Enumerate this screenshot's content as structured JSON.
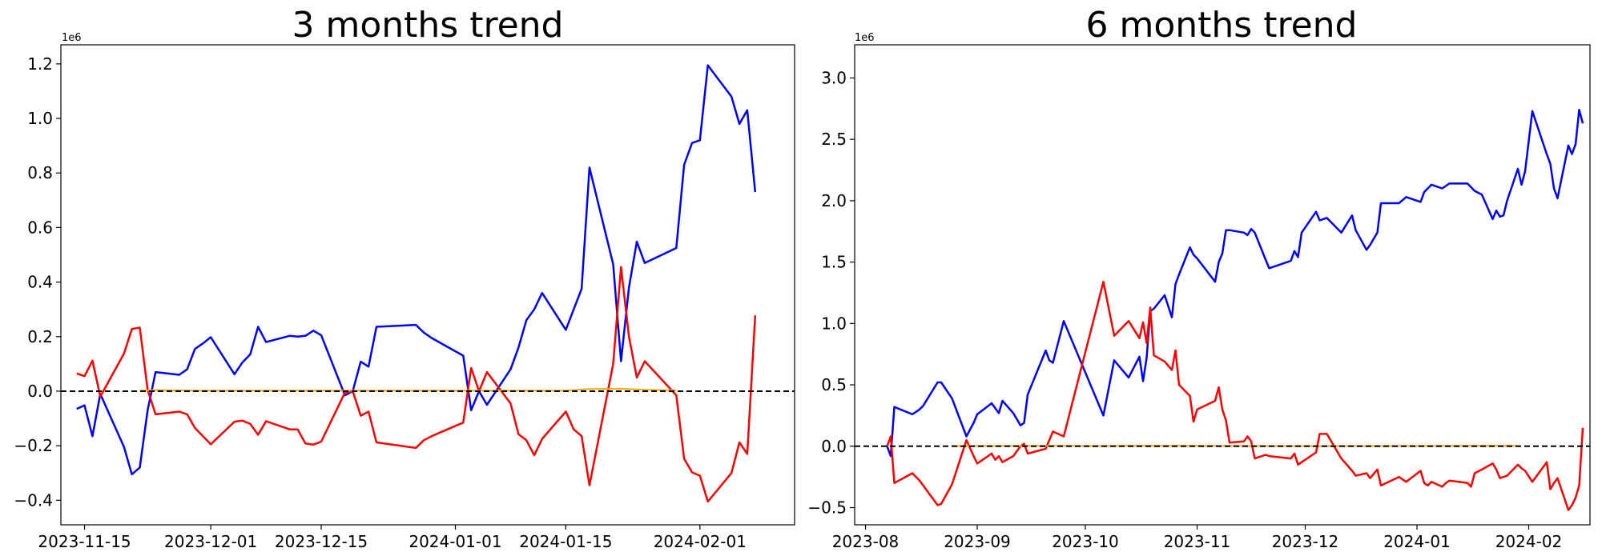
{
  "chart_data": [
    {
      "type": "line",
      "title": "3 months trend",
      "xlabel": "",
      "ylabel": "",
      "y_offset_label": "1e6",
      "y_scale": 1000000,
      "xlim": [
        "2023-11-12",
        "2024-02-13"
      ],
      "ylim": [
        -490000,
        1270000
      ],
      "x_ticks": [
        "2023-11-15",
        "2023-12-01",
        "2023-12-15",
        "2024-01-01",
        "2024-01-15",
        "2024-02-01"
      ],
      "y_ticks": [
        -400000,
        -200000,
        0,
        200000,
        400000,
        600000,
        800000,
        1000000,
        1200000
      ],
      "y_tick_labels": [
        "−0.4",
        "−0.2",
        "0.0",
        "0.2",
        "0.4",
        "0.6",
        "0.8",
        "1.0",
        "1.2"
      ],
      "grid": false,
      "legend": "none",
      "zero_line": {
        "y": 0,
        "style": "dashed",
        "color": "#000000"
      },
      "series": [
        {
          "color": "#0000ff",
          "x": [
            "2023-11-14",
            "2023-11-15",
            "2023-11-16",
            "2023-11-17",
            "2023-11-20",
            "2023-11-21",
            "2023-11-22",
            "2023-11-23",
            "2023-11-24",
            "2023-11-27",
            "2023-11-28",
            "2023-11-29",
            "2023-11-30",
            "2023-12-01",
            "2023-12-04",
            "2023-12-05",
            "2023-12-06",
            "2023-12-07",
            "2023-12-08",
            "2023-12-11",
            "2023-12-12",
            "2023-12-13",
            "2023-12-14",
            "2023-12-15",
            "2023-12-18",
            "2023-12-19",
            "2023-12-20",
            "2023-12-21",
            "2023-12-22",
            "2023-12-27",
            "2023-12-28",
            "2023-12-29",
            "2024-01-02",
            "2024-01-03",
            "2024-01-04",
            "2024-01-05",
            "2024-01-08",
            "2024-01-09",
            "2024-01-10",
            "2024-01-11",
            "2024-01-12",
            "2024-01-15",
            "2024-01-16",
            "2024-01-17",
            "2024-01-18",
            "2024-01-21",
            "2024-01-22",
            "2024-01-23",
            "2024-01-24",
            "2024-01-25",
            "2024-01-29",
            "2024-01-30",
            "2024-01-31",
            "2024-02-01",
            "2024-02-02",
            "2024-02-05",
            "2024-02-06",
            "2024-02-07",
            "2024-02-08"
          ],
          "values": [
            -65000,
            -52000,
            -165000,
            -10000,
            -205000,
            -305000,
            -280000,
            -70000,
            70000,
            60000,
            80000,
            155000,
            175000,
            198000,
            62000,
            105000,
            135000,
            236000,
            180000,
            203000,
            200000,
            203000,
            222000,
            205000,
            -15000,
            0,
            108000,
            90000,
            236000,
            243000,
            215000,
            195000,
            130000,
            -70000,
            0,
            -50000,
            80000,
            160000,
            260000,
            300000,
            360000,
            225000,
            300000,
            375000,
            820000,
            465000,
            110000,
            380000,
            548000,
            470000,
            525000,
            830000,
            910000,
            920000,
            1195000,
            1080000,
            980000,
            1030000,
            730000
          ]
        },
        {
          "color": "#ff0000",
          "x": [
            "2023-11-14",
            "2023-11-15",
            "2023-11-16",
            "2023-11-17",
            "2023-11-20",
            "2023-11-21",
            "2023-11-22",
            "2023-11-23",
            "2023-11-24",
            "2023-11-27",
            "2023-11-28",
            "2023-11-29",
            "2023-11-30",
            "2023-12-01",
            "2023-12-04",
            "2023-12-05",
            "2023-12-06",
            "2023-12-07",
            "2023-12-08",
            "2023-12-11",
            "2023-12-12",
            "2023-12-13",
            "2023-12-14",
            "2023-12-15",
            "2023-12-18",
            "2023-12-19",
            "2023-12-20",
            "2023-12-21",
            "2023-12-22",
            "2023-12-27",
            "2023-12-28",
            "2023-12-29",
            "2024-01-02",
            "2024-01-03",
            "2024-01-04",
            "2024-01-05",
            "2024-01-08",
            "2024-01-09",
            "2024-01-10",
            "2024-01-11",
            "2024-01-12",
            "2024-01-15",
            "2024-01-16",
            "2024-01-17",
            "2024-01-18",
            "2024-01-21",
            "2024-01-22",
            "2024-01-23",
            "2024-01-24",
            "2024-01-25",
            "2024-01-29",
            "2024-01-30",
            "2024-01-31",
            "2024-02-01",
            "2024-02-02",
            "2024-02-05",
            "2024-02-06",
            "2024-02-07",
            "2024-02-08"
          ],
          "values": [
            65000,
            55000,
            112000,
            -20000,
            138000,
            228000,
            233000,
            5000,
            -85000,
            -75000,
            -85000,
            -135000,
            -165000,
            -195000,
            -112000,
            -108000,
            -120000,
            -160000,
            -110000,
            -140000,
            -140000,
            -192000,
            -196000,
            -185000,
            -5000,
            0,
            -90000,
            -75000,
            -188000,
            -208000,
            -180000,
            -165000,
            -115000,
            85000,
            0,
            70000,
            -45000,
            -158000,
            -180000,
            -235000,
            -175000,
            -75000,
            -140000,
            -165000,
            -345000,
            100000,
            455000,
            200000,
            50000,
            110000,
            -15000,
            -248000,
            -298000,
            -310000,
            -405000,
            -300000,
            -188000,
            -230000,
            278000
          ]
        },
        {
          "color": "#ffa500",
          "x": [
            "2023-11-22",
            "2023-11-24",
            "2023-11-29",
            "2024-01-15",
            "2024-01-18",
            "2024-01-22",
            "2024-01-25",
            "2024-01-29"
          ],
          "values": [
            2000,
            4000,
            2000,
            2000,
            8000,
            9000,
            5000,
            3000
          ]
        }
      ]
    },
    {
      "type": "line",
      "title": "6 months trend",
      "xlabel": "",
      "ylabel": "",
      "y_offset_label": "1e6",
      "y_scale": 1000000,
      "xlim": [
        "2023-07-29",
        "2024-02-18"
      ],
      "ylim": [
        -640000,
        3270000
      ],
      "x_ticks": [
        "2023-08",
        "2023-09",
        "2023-10",
        "2023-11",
        "2023-12",
        "2024-01",
        "2024-02"
      ],
      "x_tick_dates": [
        "2023-08-01",
        "2023-09-01",
        "2023-10-01",
        "2023-11-01",
        "2023-12-01",
        "2024-01-01",
        "2024-02-01"
      ],
      "y_ticks": [
        -500000,
        0,
        500000,
        1000000,
        1500000,
        2000000,
        2500000,
        3000000
      ],
      "y_tick_labels": [
        "−0.5",
        "0.0",
        "0.5",
        "1.0",
        "1.5",
        "2.0",
        "2.5",
        "3.0"
      ],
      "grid": false,
      "legend": "none",
      "zero_line": {
        "y": 0,
        "style": "dashed",
        "color": "#000000"
      },
      "series": [
        {
          "color": "#0000ff",
          "x": [
            "2023-08-07",
            "2023-08-08",
            "2023-08-09",
            "2023-08-14",
            "2023-08-16",
            "2023-08-17",
            "2023-08-21",
            "2023-08-22",
            "2023-08-25",
            "2023-08-29",
            "2023-08-31",
            "2023-09-01",
            "2023-09-05",
            "2023-09-06",
            "2023-09-07",
            "2023-09-08",
            "2023-09-11",
            "2023-09-13",
            "2023-09-14",
            "2023-09-15",
            "2023-09-20",
            "2023-09-21",
            "2023-09-22",
            "2023-09-25",
            "2023-10-06",
            "2023-10-09",
            "2023-10-13",
            "2023-10-16",
            "2023-10-17",
            "2023-10-18",
            "2023-10-19",
            "2023-10-20",
            "2023-10-23",
            "2023-10-25",
            "2023-10-26",
            "2023-10-27",
            "2023-10-30",
            "2023-10-31",
            "2023-11-01",
            "2023-11-06",
            "2023-11-07",
            "2023-11-08",
            "2023-11-09",
            "2023-11-10",
            "2023-11-14",
            "2023-11-15",
            "2023-11-16",
            "2023-11-17",
            "2023-11-20",
            "2023-11-21",
            "2023-11-27",
            "2023-11-28",
            "2023-11-29",
            "2023-11-30",
            "2023-12-04",
            "2023-12-05",
            "2023-12-07",
            "2023-12-11",
            "2023-12-14",
            "2023-12-15",
            "2023-12-18",
            "2023-12-19",
            "2023-12-21",
            "2023-12-22",
            "2023-12-27",
            "2023-12-29",
            "2024-01-02",
            "2024-01-03",
            "2024-01-04",
            "2024-01-05",
            "2024-01-08",
            "2024-01-09",
            "2024-01-10",
            "2024-01-15",
            "2024-01-16",
            "2024-01-17",
            "2024-01-19",
            "2024-01-22",
            "2024-01-23",
            "2024-01-24",
            "2024-01-25",
            "2024-01-26",
            "2024-01-29",
            "2024-01-30",
            "2024-01-31",
            "2024-02-02",
            "2024-02-06",
            "2024-02-07",
            "2024-02-08",
            "2024-02-09"
          ],
          "values": [
            0,
            -80000,
            320000,
            260000,
            300000,
            330000,
            520000,
            520000,
            390000,
            80000,
            190000,
            260000,
            350000,
            310000,
            270000,
            370000,
            270000,
            170000,
            190000,
            420000,
            780000,
            700000,
            680000,
            1020000,
            250000,
            700000,
            560000,
            730000,
            530000,
            720000,
            1100000,
            1120000,
            1230000,
            1050000,
            1320000,
            1400000,
            1620000,
            1560000,
            1530000,
            1340000,
            1500000,
            1570000,
            1760000,
            1760000,
            1740000,
            1720000,
            1770000,
            1740000,
            1520000,
            1450000,
            1510000,
            1590000,
            1540000,
            1740000,
            1910000,
            1840000,
            1860000,
            1740000,
            1880000,
            1760000,
            1600000,
            1640000,
            1740000,
            1980000,
            1980000,
            2030000,
            1990000,
            2070000,
            2100000,
            2130000,
            2100000,
            2120000,
            2140000,
            2140000,
            2110000,
            2080000,
            2050000,
            1850000,
            1920000,
            1870000,
            1880000,
            2000000,
            2260000,
            2130000,
            2240000,
            2730000,
            2380000,
            2300000,
            2100000,
            2020000
          ],
          "x_extra": [
            "2024-02-12",
            "2024-02-13",
            "2024-02-14",
            "2024-02-15",
            "2024-02-16"
          ],
          "values_extra": [
            2450000,
            2380000,
            2460000,
            2740000,
            2630000
          ]
        },
        {
          "color": "#ff0000",
          "x": [
            "2023-08-07",
            "2023-08-08",
            "2023-08-09",
            "2023-08-14",
            "2023-08-16",
            "2023-08-17",
            "2023-08-21",
            "2023-08-22",
            "2023-08-25",
            "2023-08-29",
            "2023-08-31",
            "2023-09-01",
            "2023-09-05",
            "2023-09-06",
            "2023-09-07",
            "2023-09-08",
            "2023-09-11",
            "2023-09-13",
            "2023-09-14",
            "2023-09-15",
            "2023-09-20",
            "2023-09-21",
            "2023-09-22",
            "2023-09-25",
            "2023-10-06",
            "2023-10-09",
            "2023-10-13",
            "2023-10-16",
            "2023-10-17",
            "2023-10-18",
            "2023-10-19",
            "2023-10-20",
            "2023-10-23",
            "2023-10-25",
            "2023-10-26",
            "2023-10-27",
            "2023-10-30",
            "2023-10-31",
            "2023-11-01",
            "2023-11-06",
            "2023-11-07",
            "2023-11-08",
            "2023-11-09",
            "2023-11-10",
            "2023-11-14",
            "2023-11-15",
            "2023-11-16",
            "2023-11-17",
            "2023-11-20",
            "2023-11-21",
            "2023-11-27",
            "2023-11-28",
            "2023-11-29",
            "2023-11-30",
            "2023-12-04",
            "2023-12-05",
            "2023-12-07",
            "2023-12-11",
            "2023-12-14",
            "2023-12-15",
            "2023-12-18",
            "2023-12-19",
            "2023-12-21",
            "2023-12-22",
            "2023-12-27",
            "2023-12-29",
            "2024-01-02",
            "2024-01-03",
            "2024-01-04",
            "2024-01-05",
            "2024-01-08",
            "2024-01-09",
            "2024-01-10",
            "2024-01-15",
            "2024-01-16",
            "2024-01-17",
            "2024-01-19",
            "2024-01-22",
            "2024-01-23",
            "2024-01-24",
            "2024-01-25",
            "2024-01-26",
            "2024-01-29",
            "2024-01-30",
            "2024-01-31",
            "2024-02-02",
            "2024-02-06",
            "2024-02-07",
            "2024-02-08",
            "2024-02-09"
          ],
          "values": [
            0,
            80000,
            -300000,
            -220000,
            -280000,
            -320000,
            -480000,
            -470000,
            -310000,
            50000,
            -80000,
            -140000,
            -60000,
            -110000,
            -80000,
            -130000,
            -80000,
            0,
            20000,
            -60000,
            -20000,
            50000,
            120000,
            80000,
            1340000,
            900000,
            1020000,
            880000,
            1010000,
            840000,
            1130000,
            740000,
            690000,
            620000,
            780000,
            500000,
            410000,
            200000,
            300000,
            370000,
            480000,
            300000,
            210000,
            30000,
            40000,
            80000,
            40000,
            -100000,
            -70000,
            -80000,
            -100000,
            -60000,
            -150000,
            -130000,
            -50000,
            100000,
            100000,
            -100000,
            -200000,
            -240000,
            -220000,
            -260000,
            -190000,
            -320000,
            -250000,
            -290000,
            -200000,
            -300000,
            -320000,
            -290000,
            -330000,
            -300000,
            -280000,
            -300000,
            -330000,
            -220000,
            -190000,
            -140000,
            -190000,
            -260000,
            -250000,
            -240000,
            -150000,
            -180000,
            -200000,
            -290000,
            -130000,
            -350000,
            -300000,
            -260000
          ],
          "x_extra": [
            "2024-02-12",
            "2024-02-13",
            "2024-02-14",
            "2024-02-15",
            "2024-02-16"
          ],
          "values_extra": [
            -520000,
            -480000,
            -420000,
            -320000,
            150000
          ]
        },
        {
          "color": "#ffa500",
          "x": [
            "2023-08-25",
            "2023-09-26",
            "2023-10-02",
            "2023-10-12",
            "2023-10-20",
            "2023-10-28",
            "2023-11-20",
            "2023-12-11",
            "2023-12-21",
            "2024-01-17",
            "2024-01-22",
            "2024-01-29"
          ],
          "values": [
            2000,
            3000,
            2000,
            3000,
            3000,
            3000,
            2000,
            2000,
            2000,
            3000,
            4000,
            3000
          ]
        }
      ]
    }
  ]
}
